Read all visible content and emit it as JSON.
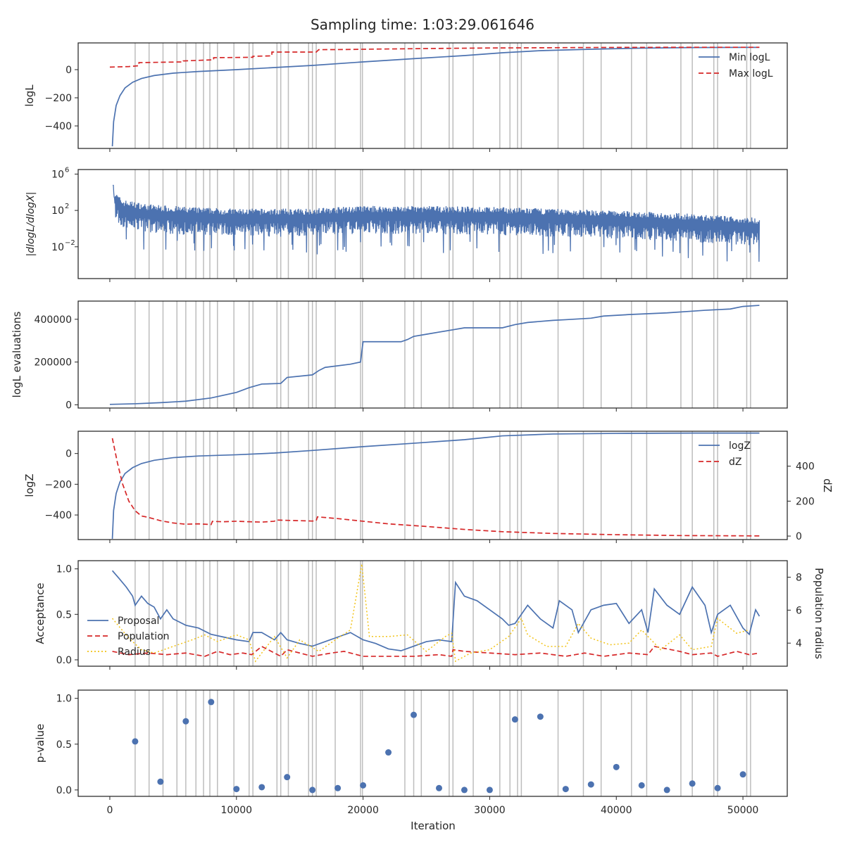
{
  "chart_data": {
    "type": "line",
    "title": "Sampling time: 1:03:29.061646",
    "xlabel": "Iteration",
    "xlim": [
      -2500,
      53500
    ],
    "xticks": [
      0,
      10000,
      20000,
      30000,
      40000,
      50000
    ],
    "xtick_labels": [
      "0",
      "10000",
      "20000",
      "30000",
      "40000",
      "50000"
    ],
    "vertical_lines": [
      2000,
      3100,
      4200,
      5300,
      6000,
      6800,
      7400,
      7900,
      8500,
      9800,
      11000,
      11300,
      13200,
      13500,
      14100,
      15700,
      16000,
      16300,
      17800,
      19800,
      19950,
      23300,
      24000,
      24600,
      26800,
      27100,
      28700,
      30800,
      31600,
      32200,
      32500,
      35400,
      37400,
      38800,
      41200,
      42400,
      45100,
      46000,
      47700,
      48000,
      50300,
      50600
    ],
    "colors": {
      "blue": "#4c72b0",
      "red": "#d62728",
      "yellow": "#f2c318",
      "vline": "#bdbdbd"
    },
    "panels": [
      {
        "id": "logl",
        "ylabel": "logL",
        "ylim": [
          -560,
          190
        ],
        "yticks": [
          0,
          -200,
          -400
        ],
        "ytick_labels": [
          "0",
          "−200",
          "−400"
        ],
        "legend": {
          "position": "top-right",
          "entries": [
            "Min logL",
            "Max logL"
          ]
        },
        "series": [
          {
            "name": "Min logL",
            "style": "solid",
            "color": "#4c72b0",
            "x": [
              200,
              300,
              500,
              800,
              1200,
              1800,
              2500,
              3500,
              5000,
              7000,
              10000,
              13000,
              16000,
              20000,
              24000,
              28000,
              31000,
              34000,
              38000,
              42000,
              46000,
              50000,
              51300
            ],
            "y": [
              -545,
              -370,
              -255,
              -185,
              -130,
              -90,
              -63,
              -42,
              -25,
              -13,
              0,
              15,
              30,
              55,
              78,
              100,
              120,
              135,
              145,
              153,
              157,
              158,
              158
            ]
          },
          {
            "name": "Max logL",
            "style": "dashed",
            "color": "#d62728",
            "x": [
              0,
              1500,
              2300,
              2300,
              5800,
              5800,
              8200,
              8200,
              11300,
              11300,
              12800,
              12800,
              16300,
              16500,
              18500,
              21000,
              25000,
              30000,
              35000,
              40000,
              46000,
              51300
            ],
            "y": [
              18,
              22,
              28,
              50,
              55,
              62,
              70,
              85,
              88,
              95,
              98,
              125,
              125,
              142,
              143,
              146,
              150,
              154,
              156,
              158,
              159,
              159
            ]
          }
        ]
      },
      {
        "id": "dlogl",
        "ylabel": "|dlogL/dlogX|",
        "scale": "log",
        "ylim_exp": [
          -5.5,
          6.5
        ],
        "yticks_exp": [
          6,
          2,
          -2
        ],
        "ytick_labels": [
          "10",
          "10",
          "10"
        ],
        "ytick_exponents": [
          "6",
          "2",
          "−2"
        ],
        "series": [
          {
            "name": "|dlogL/dlogX|",
            "style": "solid",
            "color": "#4c72b0",
            "envelope_x": [
              0,
              300,
              1000,
              3000,
              6000,
              10000,
              15000,
              20000,
              25000,
              30000,
              35000,
              40000,
              45000,
              50000,
              51300
            ],
            "envelope_log10_center": [
              5.0,
              3.0,
              2.0,
              1.5,
              1.2,
              1.0,
              1.0,
              1.3,
              1.3,
              1.2,
              1.0,
              0.8,
              0.5,
              0.1,
              0.0
            ]
          }
        ]
      },
      {
        "id": "evals",
        "ylabel": "logL evaluations",
        "ylim": [
          -15000,
          485000
        ],
        "yticks": [
          400000,
          200000,
          0
        ],
        "ytick_labels": [
          "400000",
          "200000",
          "0"
        ],
        "series": [
          {
            "name": "logL evaluations",
            "style": "solid",
            "color": "#4c72b0",
            "x": [
              0,
              2000,
              4000,
              6000,
              8000,
              10000,
              11000,
              12000,
              13500,
              14000,
              16000,
              16500,
              17000,
              19000,
              19800,
              20000,
              23000,
              23500,
              24000,
              25000,
              26000,
              27000,
              28000,
              31000,
              32000,
              33000,
              35000,
              36000,
              38000,
              39000,
              41000,
              44000,
              46000,
              47000,
              49000,
              50000,
              51300
            ],
            "y": [
              2000,
              5000,
              10000,
              17000,
              32000,
              58000,
              80000,
              97000,
              100000,
              128000,
              140000,
              160000,
              175000,
              190000,
              200000,
              295000,
              295000,
              305000,
              320000,
              330000,
              340000,
              350000,
              360000,
              360000,
              375000,
              385000,
              395000,
              398000,
              405000,
              415000,
              422000,
              430000,
              438000,
              442000,
              448000,
              460000,
              465000
            ]
          }
        ]
      },
      {
        "id": "logz",
        "ylabel": "logZ",
        "ylabel_right": "dZ",
        "ylim": [
          -560,
          145
        ],
        "yticks": [
          0,
          -200,
          -400
        ],
        "ytick_labels": [
          "0",
          "−200",
          "−400"
        ],
        "ylim_right": [
          -20,
          600
        ],
        "yticks_right": [
          400,
          200,
          0
        ],
        "ytick_labels_right": [
          "400",
          "200",
          "0"
        ],
        "legend": {
          "position": "top-right",
          "entries": [
            "logZ",
            "dZ"
          ]
        },
        "series": [
          {
            "name": "logZ",
            "style": "solid",
            "color": "#4c72b0",
            "axis": "left",
            "x": [
              200,
              300,
              500,
              800,
              1200,
              1800,
              2500,
              3500,
              5000,
              7000,
              10000,
              13000,
              16000,
              20000,
              24000,
              28000,
              31000,
              35000,
              40000,
              46000,
              51300
            ],
            "y": [
              -555,
              -370,
              -260,
              -185,
              -130,
              -92,
              -65,
              -44,
              -27,
              -16,
              -8,
              3,
              20,
              45,
              67,
              90,
              115,
              127,
              131,
              133,
              133
            ]
          },
          {
            "name": "dZ",
            "style": "dashed",
            "color": "#d62728",
            "axis": "right",
            "x": [
              200,
              600,
              1000,
              1500,
              2000,
              2500,
              3000,
              4000,
              5000,
              6000,
              7000,
              8000,
              8100,
              9000,
              10000,
              11000,
              12000,
              13000,
              13100,
              14000,
              15000,
              16000,
              16300,
              16400,
              18000,
              20000,
              22000,
              25000,
              28000,
              31000,
              35000,
              40000,
              45000,
              51300
            ],
            "y": [
              560,
              420,
              300,
              200,
              145,
              115,
              108,
              88,
              75,
              68,
              70,
              66,
              84,
              82,
              85,
              82,
              80,
              85,
              92,
              90,
              88,
              86,
              88,
              110,
              100,
              85,
              70,
              55,
              38,
              25,
              15,
              8,
              3,
              1
            ]
          }
        ]
      },
      {
        "id": "acceptance",
        "ylabel": "Acceptance",
        "ylabel_right": "Population radius",
        "ylim": [
          -0.07,
          1.09
        ],
        "yticks": [
          1.0,
          0.5,
          0.0
        ],
        "ytick_labels": [
          "1.0",
          "0.5",
          "0.0"
        ],
        "ylim_right": [
          2.6,
          9.0
        ],
        "yticks_right": [
          8,
          6,
          4
        ],
        "ytick_labels_right": [
          "8",
          "6",
          "4"
        ],
        "legend": {
          "position": "center-left",
          "entries": [
            "Proposal",
            "Population",
            "Radius"
          ]
        },
        "series": [
          {
            "name": "Proposal",
            "style": "solid",
            "color": "#4c72b0",
            "axis": "left",
            "x": [
              200,
              700,
              1300,
              1800,
              2000,
              2500,
              3000,
              3500,
              4000,
              4500,
              5000,
              6000,
              7000,
              8000,
              9000,
              10000,
              11000,
              11300,
              12000,
              13000,
              13500,
              14000,
              15000,
              16000,
              17000,
              18000,
              19000,
              20000,
              21000,
              22000,
              23000,
              24000,
              25000,
              26000,
              27000,
              27300,
              28000,
              29000,
              30000,
              31000,
              31500,
              32000,
              33000,
              34000,
              35000,
              35500,
              36500,
              37000,
              38000,
              39000,
              40000,
              41000,
              42000,
              42500,
              43000,
              44000,
              45000,
              46000,
              47000,
              47500,
              48000,
              49000,
              50000,
              50500,
              51000,
              51300
            ],
            "y": [
              0.98,
              0.9,
              0.8,
              0.7,
              0.6,
              0.7,
              0.62,
              0.58,
              0.45,
              0.55,
              0.45,
              0.38,
              0.35,
              0.28,
              0.25,
              0.22,
              0.2,
              0.3,
              0.3,
              0.22,
              0.3,
              0.22,
              0.18,
              0.15,
              0.2,
              0.25,
              0.3,
              0.22,
              0.18,
              0.12,
              0.1,
              0.15,
              0.2,
              0.22,
              0.2,
              0.85,
              0.7,
              0.65,
              0.55,
              0.45,
              0.38,
              0.4,
              0.6,
              0.45,
              0.35,
              0.65,
              0.55,
              0.3,
              0.55,
              0.6,
              0.62,
              0.4,
              0.55,
              0.3,
              0.78,
              0.6,
              0.5,
              0.8,
              0.6,
              0.3,
              0.5,
              0.6,
              0.35,
              0.28,
              0.55,
              0.48
            ]
          },
          {
            "name": "Population",
            "style": "dashed",
            "color": "#d62728",
            "axis": "right",
            "x": [
              200,
              1500,
              3000,
              4500,
              6000,
              7500,
              8500,
              9500,
              10500,
              11200,
              12000,
              13500,
              14000,
              15000,
              16000,
              17500,
              18500,
              20000,
              22000,
              24000,
              26000,
              27000,
              27100,
              28000,
              30000,
              32000,
              34000,
              36000,
              37500,
              39000,
              41000,
              42500,
              43000,
              45000,
              46000,
              47500,
              48000,
              49500,
              50500,
              51300
            ],
            "y": [
              3.5,
              3.3,
              3.4,
              3.3,
              3.4,
              3.2,
              3.5,
              3.3,
              3.4,
              3.3,
              3.8,
              3.2,
              3.6,
              3.4,
              3.2,
              3.4,
              3.5,
              3.2,
              3.2,
              3.2,
              3.3,
              3.2,
              3.6,
              3.5,
              3.4,
              3.3,
              3.4,
              3.2,
              3.4,
              3.2,
              3.4,
              3.3,
              3.8,
              3.5,
              3.3,
              3.4,
              3.2,
              3.5,
              3.3,
              3.4
            ]
          },
          {
            "name": "Radius",
            "style": "dotted",
            "color": "#f2c318",
            "axis": "right",
            "x": [
              200,
              1500,
              2500,
              3500,
              5000,
              6500,
              7500,
              8500,
              10000,
              11000,
              11500,
              13000,
              14000,
              15000,
              16500,
              18000,
              19000,
              19900,
              20500,
              22000,
              23500,
              25000,
              26500,
              27000,
              27300,
              28500,
              30000,
              31500,
              32500,
              33000,
              34500,
              36000,
              37000,
              38000,
              39500,
              41000,
              42000,
              43500,
              45000,
              46000,
              47500,
              48000,
              49500,
              50500
            ],
            "y": [
              5.5,
              4.3,
              3.6,
              3.4,
              3.8,
              4.2,
              4.5,
              4.1,
              4.5,
              4.2,
              2.9,
              4.4,
              3.1,
              4.2,
              3.5,
              4.3,
              4.8,
              8.8,
              4.4,
              4.4,
              4.5,
              3.5,
              4.4,
              4.6,
              2.9,
              3.4,
              3.6,
              4.4,
              5.5,
              4.5,
              3.8,
              3.8,
              5.2,
              4.3,
              3.9,
              4.0,
              4.8,
              3.6,
              4.5,
              3.6,
              3.8,
              5.5,
              4.6,
              4.8
            ]
          }
        ]
      },
      {
        "id": "pvalue",
        "ylabel": "p-value",
        "ylim": [
          -0.07,
          1.09
        ],
        "yticks": [
          1.0,
          0.5,
          0.0
        ],
        "ytick_labels": [
          "1.0",
          "0.5",
          "0.0"
        ],
        "series": [
          {
            "name": "p-value",
            "style": "markers",
            "color": "#4c72b0",
            "x": [
              2000,
              4000,
              6000,
              8000,
              10000,
              12000,
              14000,
              16000,
              18000,
              20000,
              22000,
              24000,
              26000,
              28000,
              30000,
              32000,
              34000,
              36000,
              38000,
              40000,
              42000,
              44000,
              46000,
              48000,
              50000
            ],
            "y": [
              0.53,
              0.09,
              0.75,
              0.96,
              0.01,
              0.03,
              0.14,
              0.0,
              0.02,
              0.05,
              0.41,
              0.82,
              0.02,
              0.0,
              0.0,
              0.77,
              0.8,
              0.01,
              0.06,
              0.25,
              0.05,
              0.0,
              0.07,
              0.02,
              0.17
            ]
          }
        ]
      }
    ]
  }
}
